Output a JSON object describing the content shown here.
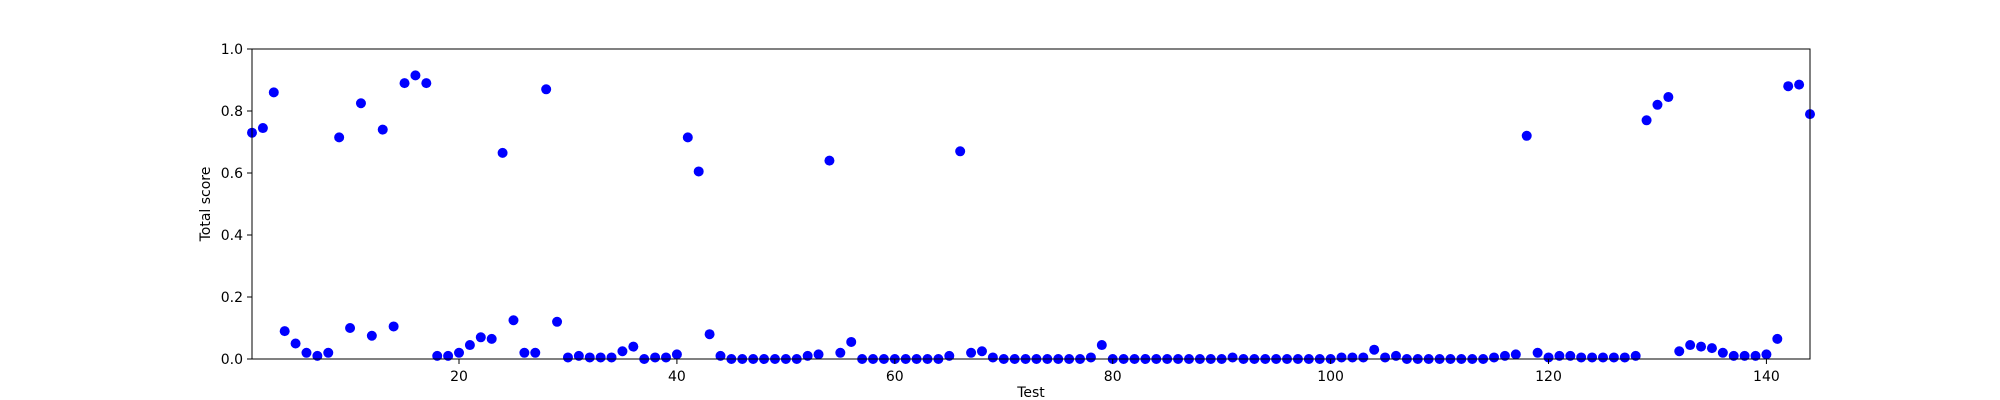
{
  "chart_data": {
    "type": "scatter",
    "title": "",
    "xlabel": "Test",
    "ylabel": "Total score",
    "xlim": [
      1,
      144
    ],
    "ylim": [
      0,
      1.0
    ],
    "xticks": [
      20,
      40,
      60,
      80,
      100,
      120,
      140
    ],
    "yticks": [
      0.0,
      0.2,
      0.4,
      0.6,
      0.8,
      1.0
    ],
    "xtick_labels": [
      "20",
      "40",
      "60",
      "80",
      "100",
      "120",
      "140"
    ],
    "ytick_labels": [
      "0.0",
      "0.2",
      "0.4",
      "0.6",
      "0.8",
      "1.0"
    ],
    "grid": false,
    "marker_color": "#0000ff",
    "series": [
      {
        "x": [
          1,
          2,
          3,
          4,
          5,
          6,
          7,
          8,
          9,
          10,
          11,
          12,
          13,
          14,
          15,
          16,
          17,
          18,
          19,
          20,
          21,
          22,
          23,
          24,
          25,
          26,
          27,
          28,
          29,
          30,
          31,
          32,
          33,
          34,
          35,
          36,
          37,
          38,
          39,
          40,
          41,
          42,
          43,
          44,
          45,
          46,
          47,
          48,
          49,
          50,
          51,
          52,
          53,
          54,
          55,
          56,
          57,
          58,
          59,
          60,
          61,
          62,
          63,
          64,
          65,
          66,
          67,
          68,
          69,
          70,
          71,
          72,
          73,
          74,
          75,
          76,
          77,
          78,
          79,
          80,
          81,
          82,
          83,
          84,
          85,
          86,
          87,
          88,
          89,
          90,
          91,
          92,
          93,
          94,
          95,
          96,
          97,
          98,
          99,
          100,
          101,
          102,
          103,
          104,
          105,
          106,
          107,
          108,
          109,
          110,
          111,
          112,
          113,
          114,
          115,
          116,
          117,
          118,
          119,
          120,
          121,
          122,
          123,
          124,
          125,
          126,
          127,
          128,
          129,
          130,
          131,
          132,
          133,
          134,
          135,
          136,
          137,
          138,
          139,
          140,
          141,
          142,
          143,
          144
        ],
        "y": [
          0.73,
          0.745,
          0.86,
          0.09,
          0.05,
          0.02,
          0.01,
          0.02,
          0.715,
          0.1,
          0.825,
          0.075,
          0.74,
          0.105,
          0.89,
          0.915,
          0.89,
          0.01,
          0.01,
          0.02,
          0.045,
          0.07,
          0.065,
          0.665,
          0.125,
          0.02,
          0.02,
          0.87,
          0.12,
          0.005,
          0.01,
          0.005,
          0.005,
          0.005,
          0.025,
          0.04,
          0.0,
          0.005,
          0.005,
          0.015,
          0.715,
          0.605,
          0.08,
          0.01,
          0.0,
          0.0,
          0.0,
          0.0,
          0.0,
          0.0,
          0.0,
          0.01,
          0.015,
          0.64,
          0.02,
          0.055,
          0.0,
          0.0,
          0.0,
          0.0,
          0.0,
          0.0,
          0.0,
          0.0,
          0.01,
          0.67,
          0.02,
          0.025,
          0.005,
          0.0,
          0.0,
          0.0,
          0.0,
          0.0,
          0.0,
          0.0,
          0.0,
          0.005,
          0.045,
          0.0,
          0.0,
          0.0,
          0.0,
          0.0,
          0.0,
          0.0,
          0.0,
          0.0,
          0.0,
          0.0,
          0.005,
          0.0,
          0.0,
          0.0,
          0.0,
          0.0,
          0.0,
          0.0,
          0.0,
          0.0,
          0.005,
          0.005,
          0.005,
          0.03,
          0.005,
          0.01,
          0.0,
          0.0,
          0.0,
          0.0,
          0.0,
          0.0,
          0.0,
          0.0,
          0.005,
          0.01,
          0.015,
          0.72,
          0.02,
          0.005,
          0.01,
          0.01,
          0.005,
          0.005,
          0.005,
          0.005,
          0.005,
          0.01,
          0.77,
          0.82,
          0.845,
          0.025,
          0.045,
          0.04,
          0.035,
          0.02,
          0.01,
          0.01,
          0.01,
          0.015,
          0.065,
          0.88,
          0.885,
          0.79
        ]
      }
    ]
  }
}
